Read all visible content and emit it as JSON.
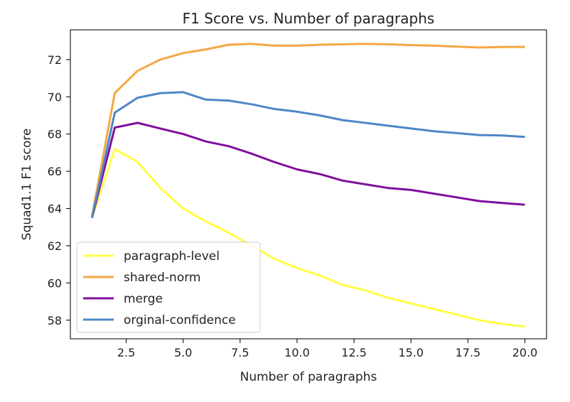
{
  "chart_data": {
    "type": "line",
    "title": "F1 Score vs. Number of paragraphs",
    "xlabel": "Number of paragraphs",
    "ylabel": "Squad1.1 F1 score",
    "xlim": [
      0.05,
      20.95
    ],
    "ylim": [
      57.0,
      73.6
    ],
    "xticks": [
      2.5,
      5.0,
      7.5,
      10.0,
      12.5,
      15.0,
      17.5,
      20.0
    ],
    "xtick_labels": [
      "2.5",
      "5.0",
      "7.5",
      "10.0",
      "12.5",
      "15.0",
      "17.5",
      "20.0"
    ],
    "yticks": [
      58,
      60,
      62,
      64,
      66,
      68,
      70,
      72
    ],
    "ytick_labels": [
      "58",
      "60",
      "62",
      "64",
      "66",
      "68",
      "70",
      "72"
    ],
    "grid": false,
    "legend_position": "lower-left",
    "x": [
      1,
      2,
      3,
      4,
      5,
      6,
      7,
      8,
      9,
      10,
      11,
      12,
      13,
      14,
      15,
      16,
      17,
      18,
      19,
      20
    ],
    "series": [
      {
        "name": "paragraph-level",
        "color": "#ffff44",
        "values": [
          63.5,
          67.2,
          66.5,
          65.1,
          64.0,
          63.3,
          62.7,
          62.0,
          61.3,
          60.8,
          60.4,
          59.9,
          59.6,
          59.2,
          58.9,
          58.6,
          58.3,
          58.0,
          57.8,
          57.65
        ]
      },
      {
        "name": "shared-norm",
        "color": "#f5a742",
        "values": [
          63.6,
          70.2,
          71.4,
          72.0,
          72.35,
          72.55,
          72.8,
          72.85,
          72.75,
          72.75,
          72.8,
          72.82,
          72.85,
          72.82,
          72.78,
          72.75,
          72.7,
          72.65,
          72.68,
          72.68
        ]
      },
      {
        "name": "merge",
        "color": "#800f9e",
        "values": [
          63.5,
          68.35,
          68.6,
          68.3,
          68.0,
          67.6,
          67.35,
          66.95,
          66.5,
          66.1,
          65.85,
          65.5,
          65.3,
          65.1,
          65.0,
          64.8,
          64.6,
          64.4,
          64.3,
          64.2
        ]
      },
      {
        "name": "orginal-confidence",
        "color": "#4d86c6",
        "values": [
          63.5,
          69.15,
          69.95,
          70.2,
          70.25,
          69.85,
          69.8,
          69.6,
          69.35,
          69.2,
          69.0,
          68.75,
          68.6,
          68.45,
          68.3,
          68.15,
          68.05,
          67.95,
          67.92,
          67.85
        ]
      }
    ]
  }
}
